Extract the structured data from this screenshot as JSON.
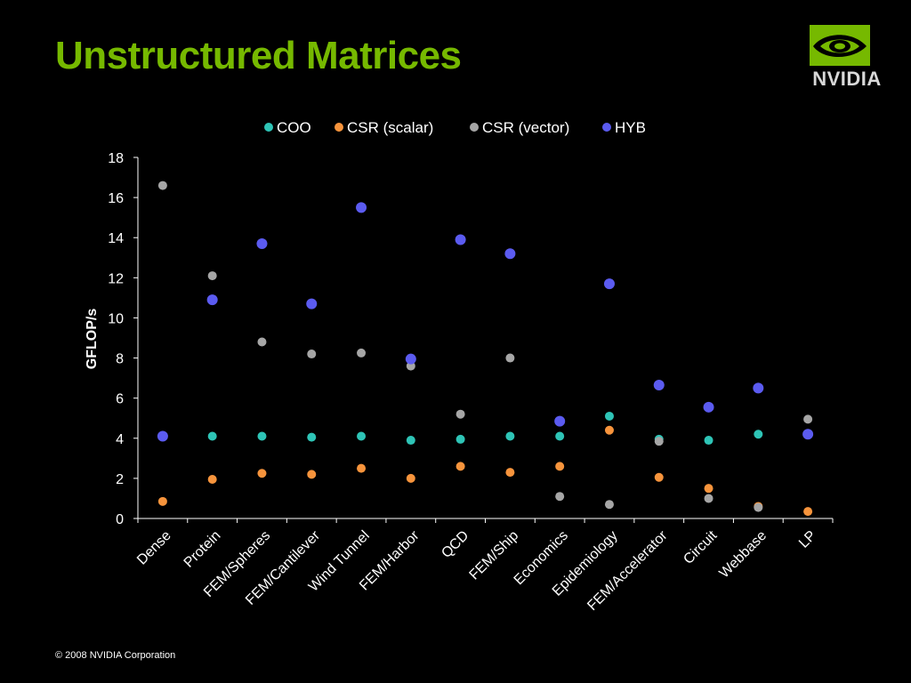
{
  "slide": {
    "title": "Unstructured Matrices",
    "brand": "NVIDIA",
    "footer": "© 2008 NVIDIA Corporation"
  },
  "colors": {
    "title": "#76b900",
    "COO": "#2ec4b6",
    "CSR (scalar)": "#f7943c",
    "CSR (vector)": "#a6a6a6",
    "HYB": "#5b5bf0"
  },
  "chart_data": {
    "type": "scatter",
    "title": "",
    "xlabel": "",
    "ylabel": "GFLOP/s",
    "ylim": [
      0,
      18
    ],
    "yticks": [
      0,
      2,
      4,
      6,
      8,
      10,
      12,
      14,
      16,
      18
    ],
    "grid": false,
    "legend_position": "top",
    "categories": [
      "Dense",
      "Protein",
      "FEM/Spheres",
      "FEM/Cantilever",
      "Wind Tunnel",
      "FEM/Harbor",
      "QCD",
      "FEM/Ship",
      "Economics",
      "Epidemiology",
      "FEM/Accelerator",
      "Circuit",
      "Webbase",
      "LP"
    ],
    "series": [
      {
        "name": "COO",
        "values": [
          4.1,
          4.1,
          4.1,
          4.05,
          4.1,
          3.9,
          3.95,
          4.1,
          4.1,
          5.1,
          3.95,
          3.9,
          4.2,
          4.2
        ]
      },
      {
        "name": "CSR (scalar)",
        "values": [
          0.85,
          1.95,
          2.25,
          2.2,
          2.5,
          2.0,
          2.6,
          2.3,
          2.6,
          4.4,
          2.05,
          1.5,
          0.6,
          0.35
        ]
      },
      {
        "name": "CSR (vector)",
        "values": [
          16.6,
          12.1,
          8.8,
          8.2,
          8.25,
          7.6,
          5.2,
          8.0,
          1.1,
          0.7,
          3.85,
          1.0,
          0.55,
          4.95
        ]
      },
      {
        "name": "HYB",
        "values": [
          4.1,
          10.9,
          13.7,
          10.7,
          15.5,
          7.95,
          13.9,
          13.2,
          4.85,
          11.7,
          6.65,
          5.55,
          6.5,
          4.2
        ]
      }
    ]
  }
}
